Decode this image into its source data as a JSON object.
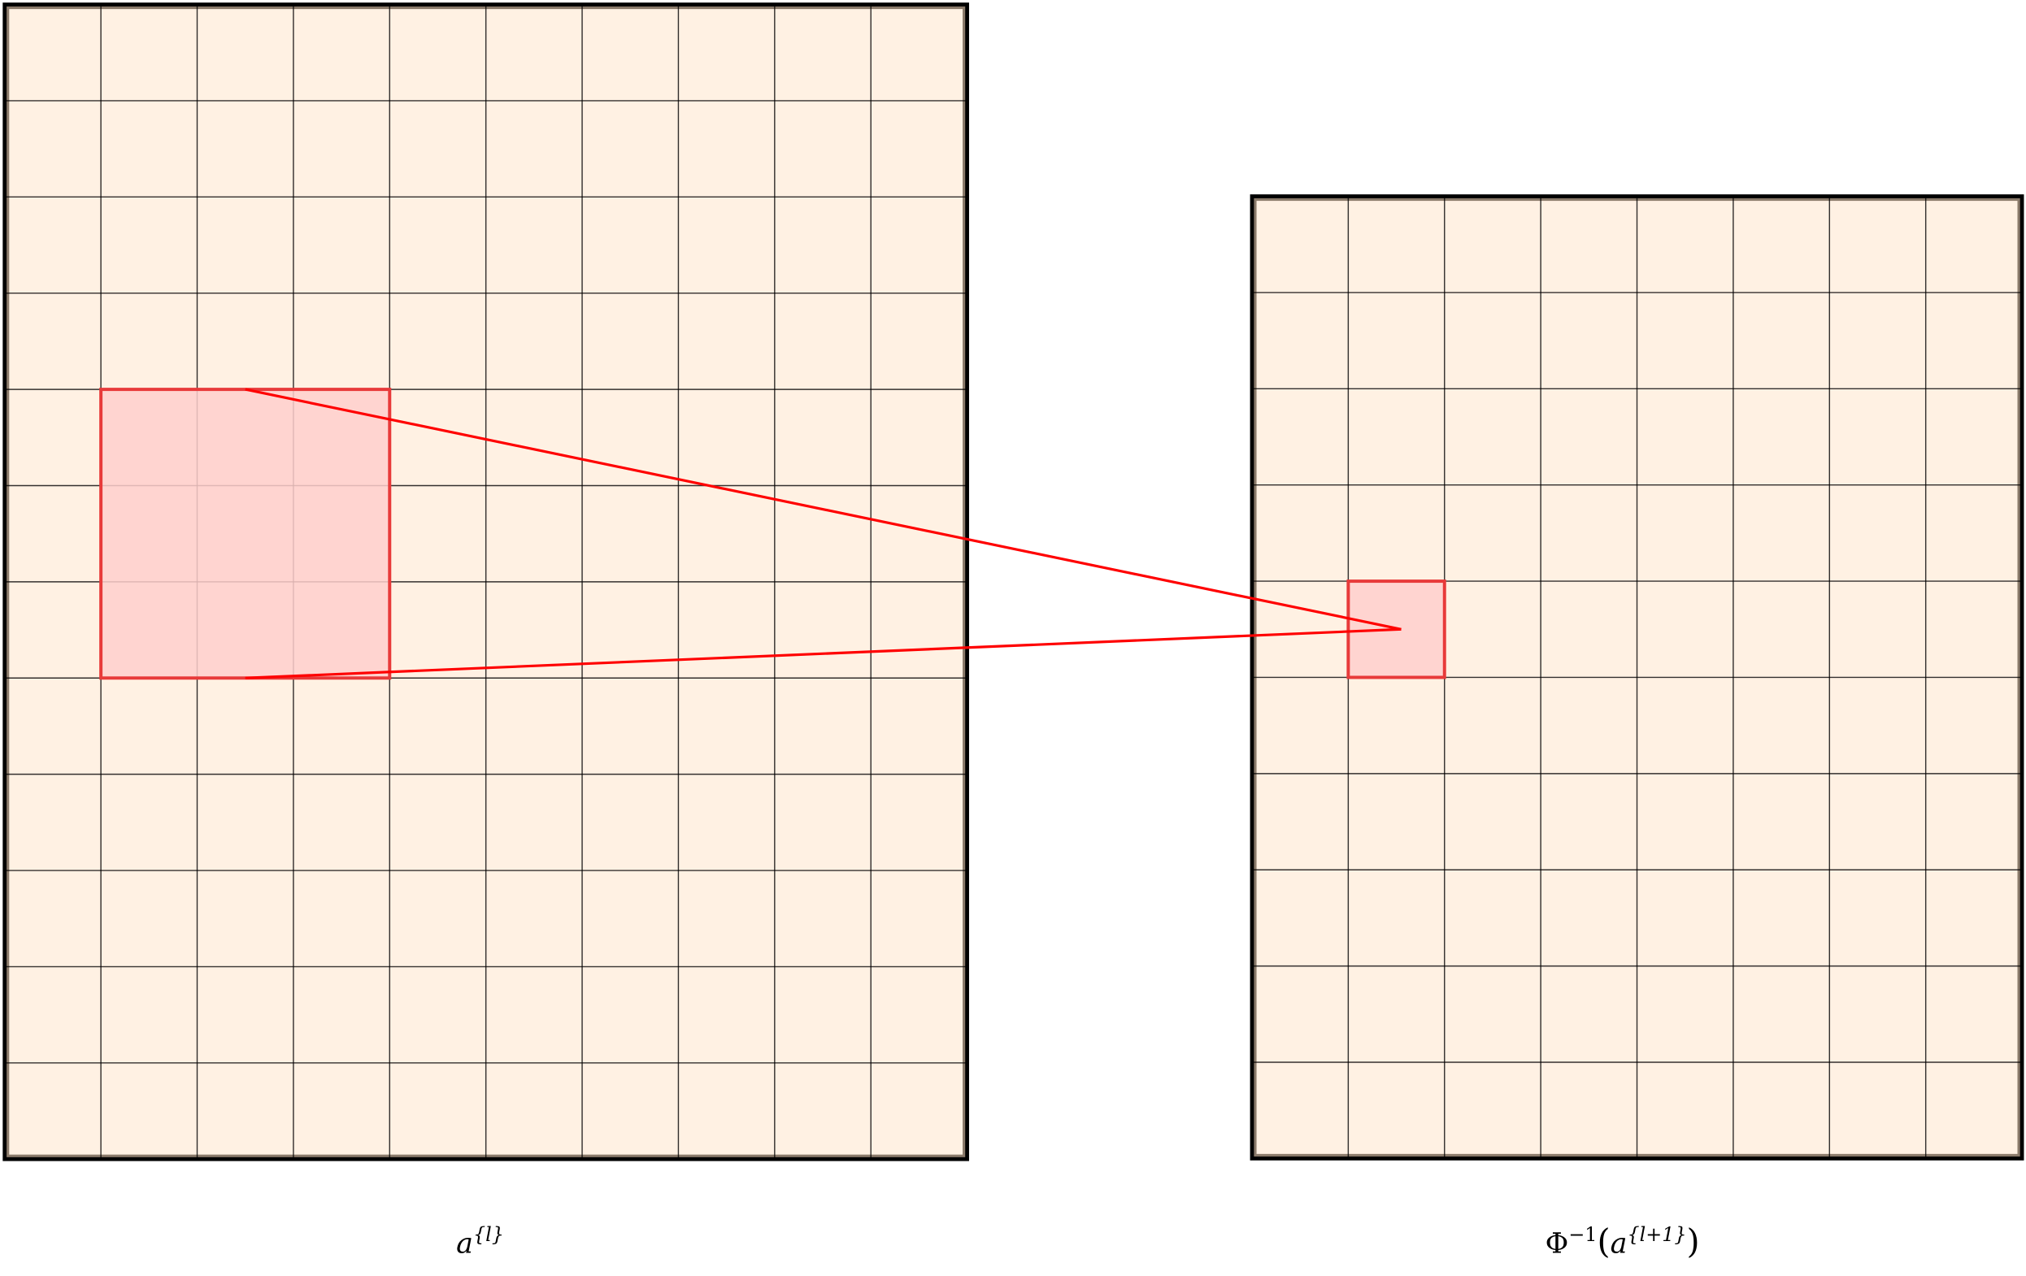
{
  "colors": {
    "cell_fill": "#fff1e3",
    "grid_line": "#000000",
    "border": "#000000",
    "highlight_fill": "#ffcfcc",
    "highlight_stroke": "#e83a3a",
    "connector": "#ff0000"
  },
  "left_grid": {
    "columns": 10,
    "rows": 12,
    "highlight": {
      "col_start": 1,
      "row_start": 4,
      "col_span": 3,
      "row_span": 3
    },
    "label": {
      "base": "a",
      "sup": "{l}"
    }
  },
  "right_grid": {
    "columns": 8,
    "rows": 10,
    "highlight": {
      "col_start": 1,
      "row_start": 4,
      "col_span": 1,
      "row_span": 1
    },
    "label": {
      "func": "Φ",
      "func_sup": "−1",
      "open": "(",
      "base": "a",
      "sup": "{l+1}",
      "close": ")"
    }
  }
}
